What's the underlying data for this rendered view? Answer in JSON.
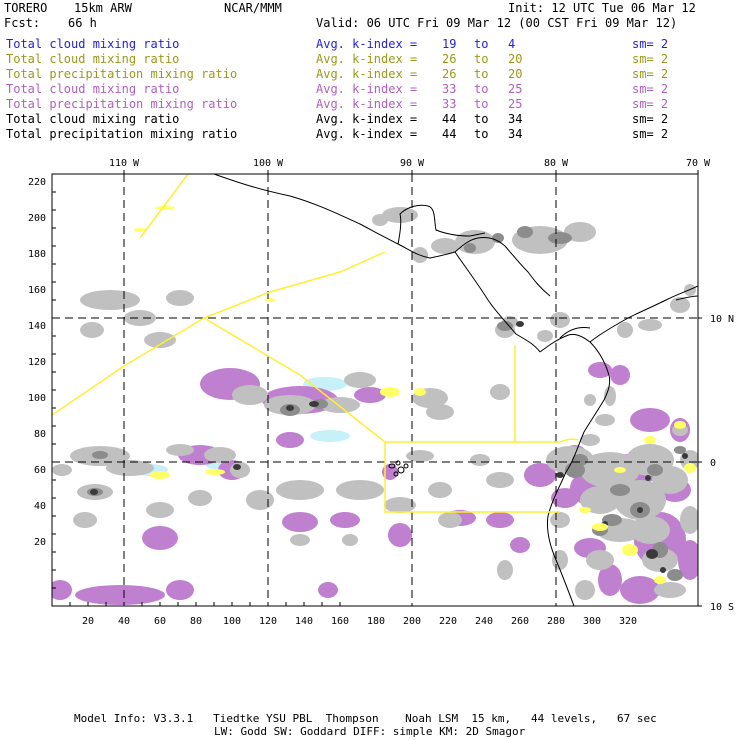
{
  "header": {
    "model": "TORERO",
    "resolution": "15km ARW",
    "center": "NCAR/MMM",
    "init": "Init: 12 UTC Tue 06 Mar 12",
    "fcst_label": "Fcst:",
    "fcst_value": "66 h",
    "valid": "Valid: 06 UTC Fri 09 Mar 12 (00 CST Fri 09 Mar 12)"
  },
  "legend": [
    {
      "name": "Total cloud mixing ratio",
      "avg": "Avg. k-index =",
      "from": "19",
      "to_word": "to",
      "to": "4",
      "sm": "sm= 2",
      "color": "#2222dd"
    },
    {
      "name": "Total cloud mixing ratio",
      "avg": "Avg. k-index =",
      "from": "26",
      "to_word": "to",
      "to": "20",
      "sm": "sm= 2",
      "color": "#9a9a1a"
    },
    {
      "name": "Total precipitation mixing ratio",
      "avg": "Avg. k-index =",
      "from": "26",
      "to_word": "to",
      "to": "20",
      "sm": "sm= 2",
      "color": "#9a9a1a"
    },
    {
      "name": "Total cloud mixing ratio",
      "avg": "Avg. k-index =",
      "from": "33",
      "to_word": "to",
      "to": "25",
      "sm": "sm= 2",
      "color": "#b060c0"
    },
    {
      "name": "Total precipitation mixing ratio",
      "avg": "Avg. k-index =",
      "from": "33",
      "to_word": "to",
      "to": "25",
      "sm": "sm= 2",
      "color": "#b060c0"
    },
    {
      "name": "Total cloud mixing ratio",
      "avg": "Avg. k-index =",
      "from": "44",
      "to_word": "to",
      "to": "34",
      "sm": "sm= 2",
      "color": "#000000"
    },
    {
      "name": "Total precipitation mixing ratio",
      "avg": "Avg. k-index =",
      "from": "44",
      "to_word": "to",
      "to": "34",
      "sm": "sm= 2",
      "color": "#000000"
    }
  ],
  "map": {
    "top_lon_labels": [
      "110 W",
      "100 W",
      "90 W",
      "80 W",
      "70 W"
    ],
    "right_lat_labels": [
      "10 N",
      "0",
      "10 S"
    ],
    "y_ticks": [
      "220",
      "200",
      "180",
      "160",
      "140",
      "120",
      "100",
      "80",
      "60",
      "40",
      "20"
    ],
    "x_ticks": [
      "20",
      "40",
      "60",
      "80",
      "100",
      "120",
      "140",
      "160",
      "180",
      "200",
      "220",
      "240",
      "260",
      "280",
      "300",
      "320"
    ],
    "colors": {
      "light_gray": "#c0c0c0",
      "mid_gray": "#8c8c8c",
      "dark_gray": "#3a3a3a",
      "purple": "#c080d0",
      "yellow": "#ffff66",
      "boundary": "#ffee33",
      "cyan": "#c8f0f8"
    }
  },
  "footer": {
    "line1": "Model Info: V3.3.1   Tiedtke YSU PBL  Thompson    Noah LSM  15 km,   44 levels,   67 sec",
    "line2": "LW: Godd SW: Goddard DIFF: simple KM: 2D Smagor"
  }
}
